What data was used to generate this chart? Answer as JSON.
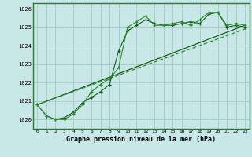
{
  "background_color": "#c8e8e8",
  "grid_color": "#aacccc",
  "line_color_dark": "#1a5c1a",
  "line_color_mid": "#2d8b2d",
  "title": "Graphe pression niveau de la mer (hPa)",
  "xlim": [
    -0.5,
    23.5
  ],
  "ylim": [
    1019.5,
    1026.3
  ],
  "yticks": [
    1020,
    1021,
    1022,
    1023,
    1024,
    1025,
    1026
  ],
  "xticks": [
    0,
    1,
    2,
    3,
    4,
    5,
    6,
    7,
    8,
    9,
    10,
    11,
    12,
    13,
    14,
    15,
    16,
    17,
    18,
    19,
    20,
    21,
    22,
    23
  ],
  "series1_x": [
    0,
    1,
    2,
    3,
    4,
    5,
    6,
    7,
    8,
    9,
    10,
    11,
    12,
    13,
    14,
    15,
    16,
    17,
    18,
    19,
    20,
    21,
    22,
    23
  ],
  "series1_y": [
    1020.8,
    1020.2,
    1020.0,
    1020.0,
    1020.3,
    1020.8,
    1021.5,
    1021.9,
    1022.2,
    1022.8,
    1025.0,
    1025.3,
    1025.6,
    1025.1,
    1025.1,
    1025.2,
    1025.3,
    1025.1,
    1025.4,
    1025.8,
    1025.8,
    1025.1,
    1025.2,
    1025.1
  ],
  "series2_x": [
    0,
    1,
    2,
    3,
    4,
    5,
    6,
    7,
    8,
    9,
    10,
    11,
    12,
    13,
    14,
    15,
    16,
    17,
    18,
    19,
    20,
    21,
    22,
    23
  ],
  "series2_y": [
    1020.8,
    1020.2,
    1020.0,
    1020.1,
    1020.4,
    1020.9,
    1021.2,
    1021.5,
    1021.9,
    1023.7,
    1024.8,
    1025.1,
    1025.4,
    1025.2,
    1025.1,
    1025.1,
    1025.2,
    1025.3,
    1025.2,
    1025.7,
    1025.8,
    1025.0,
    1025.1,
    1025.0
  ],
  "series3_x": [
    0,
    23
  ],
  "series3_y": [
    1020.8,
    1025.1
  ],
  "series4_x": [
    0,
    23
  ],
  "series4_y": [
    1020.8,
    1024.9
  ]
}
